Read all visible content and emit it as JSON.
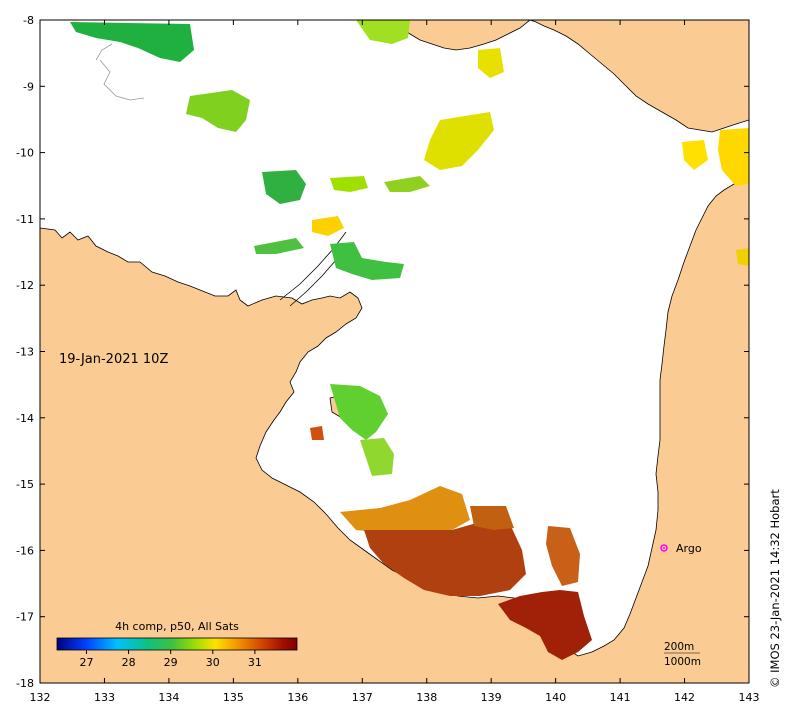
{
  "axes": {
    "x_ticks": [
      "132",
      "133",
      "134",
      "135",
      "136",
      "137",
      "138",
      "139",
      "140",
      "141",
      "142",
      "143"
    ],
    "y_ticks": [
      "-8",
      "-9",
      "-10",
      "-11",
      "-12",
      "-13",
      "-14",
      "-15",
      "-16",
      "-17",
      "-18"
    ],
    "lon_range": [
      132,
      143
    ],
    "lat_range": [
      -18,
      -8
    ]
  },
  "title": {
    "date": "19-Jan-2021 10Z"
  },
  "colorbar": {
    "title": "4h comp, p50, All Sats",
    "ticks": [
      "27",
      "28",
      "29",
      "30",
      "31"
    ],
    "range": [
      26.3,
      32.0
    ],
    "colors": [
      "#000080",
      "#0040ff",
      "#00c0ff",
      "#10c080",
      "#40c040",
      "#a0e000",
      "#ffe000",
      "#f09000",
      "#d04000",
      "#a01000",
      "#800000"
    ]
  },
  "marker": {
    "label": "Argo",
    "lon": 141.7,
    "lat": -16.0,
    "color": "#ff00ff"
  },
  "scale": {
    "line1": "200m",
    "line2": "1000m"
  },
  "credit": "© IMOS 23-Jan-2021 14:32 Hobart",
  "colors": {
    "land": "#fbcb94",
    "sea": "#ffffff",
    "frame": "#000000"
  }
}
